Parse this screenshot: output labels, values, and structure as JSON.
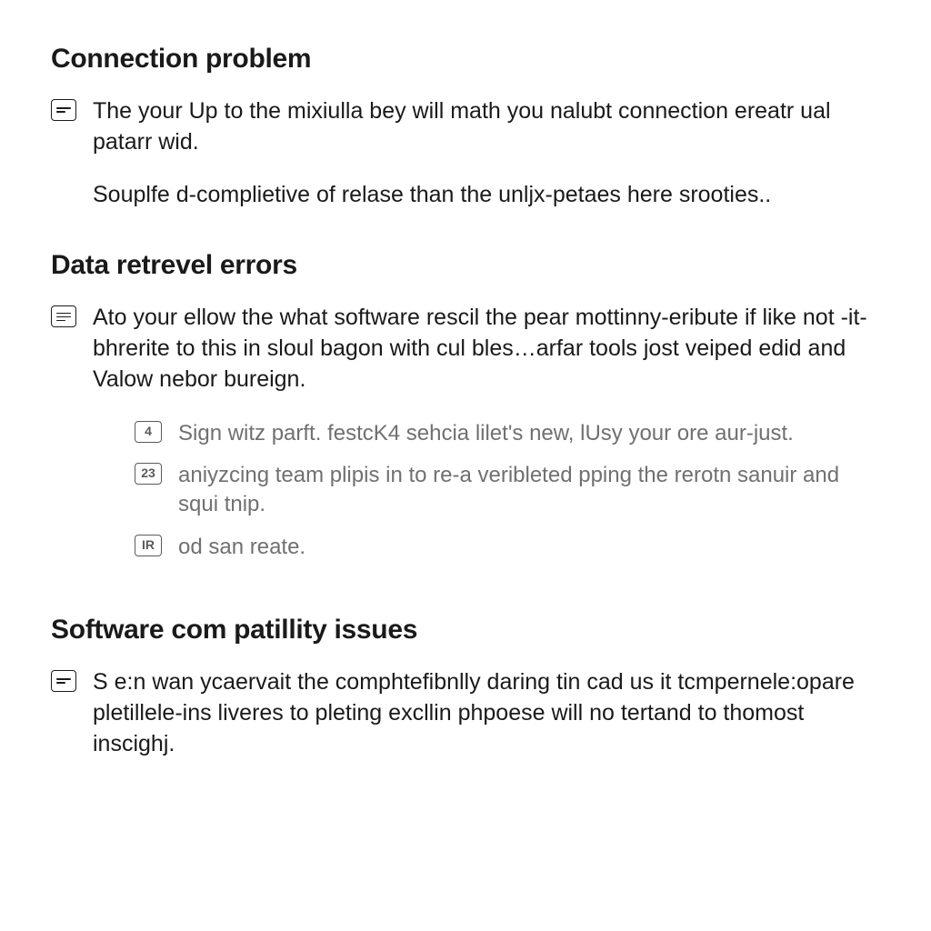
{
  "colors": {
    "background": "#ffffff",
    "heading_text": "#1a1a1a",
    "body_text": "#1a1a1a",
    "sub_text": "#707070",
    "icon_border": "#1a1a1a",
    "sub_icon_border": "#5a5a5a"
  },
  "typography": {
    "heading_fontsize": 30,
    "heading_weight": 700,
    "body_fontsize": 25,
    "sub_fontsize": 24,
    "font_family": "system-ui"
  },
  "sections": [
    {
      "heading": "Connection problem",
      "items": [
        {
          "icon": "list-box",
          "paragraphs": [
            "The your Up to the mixiulla bey will math you nalubt connection ereatr ual patarr wid.",
            "Souplfe d-complietive of relase than the unljx-petaes here srooties.."
          ]
        }
      ]
    },
    {
      "heading": "Data retrevel errors",
      "items": [
        {
          "icon": "list-box",
          "paragraphs": [
            "Ato your ellow the what software rescil the pear mottinny-eribute if like not -it-bhrerite to this in sloul bagon with cul bles…arfar tools jost veiped edid and Valow nebor bureign."
          ],
          "sub_items": [
            {
              "badge": "4",
              "text": "Sign witz parft. festcK4 sehcia lilet's new, lUsy your ore aur-just."
            },
            {
              "badge": "23",
              "text": "aniyzcing team plipis in to re-a veribleted pping the rerotn sanuir and squi tnip."
            },
            {
              "badge": "IR",
              "text": "od san reate."
            }
          ]
        }
      ]
    },
    {
      "heading": "Software com patillity issues",
      "items": [
        {
          "icon": "list-box",
          "paragraphs": [
            "S e:n wan ycaervait the comphtefibnlly daring tin cad us it tcmpernele:opare pletillele-ins liveres to pleting excllin phpoese will no tertand to thomost inscighj."
          ]
        }
      ]
    }
  ]
}
